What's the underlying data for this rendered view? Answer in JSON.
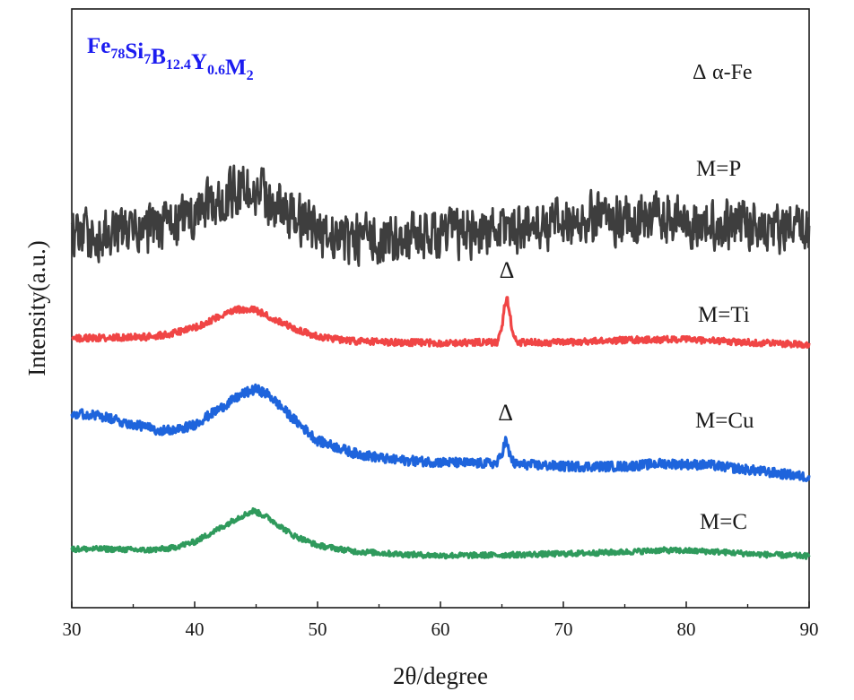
{
  "chart_data": {
    "type": "line",
    "title": {
      "base": [
        {
          "t": "Fe",
          "sub": "78"
        },
        {
          "t": "Si",
          "sub": "7"
        },
        {
          "t": "B",
          "sub": "12.4"
        },
        {
          "t": "Y",
          "sub": "0.6"
        },
        {
          "t": "M",
          "sub": "2"
        }
      ],
      "color": "#1c1cf0"
    },
    "xlabel": "2θ/degree",
    "ylabel": "Intensity(a.u.)",
    "xlim": [
      30,
      90
    ],
    "ylim": [
      0,
      100
    ],
    "xticks": [
      30,
      40,
      50,
      60,
      70,
      80,
      90
    ],
    "xtick_labels": [
      "30",
      "40",
      "50",
      "60",
      "70",
      "80",
      "90"
    ],
    "yticks_shown": false,
    "grid": false,
    "legend": {
      "marker": "Δ",
      "text": "α-Fe",
      "position": "top-right"
    },
    "peak_marker": "Δ",
    "series": [
      {
        "name": "M=P",
        "color": "#3e3e3e",
        "noise": 5.5,
        "peak_marked": false,
        "profile": [
          [
            30,
            62.0
          ],
          [
            33,
            62.3
          ],
          [
            37,
            63.2
          ],
          [
            40,
            65.5
          ],
          [
            42.5,
            68.5
          ],
          [
            44,
            70.0
          ],
          [
            46,
            68.2
          ],
          [
            48,
            65.2
          ],
          [
            50,
            62.7
          ],
          [
            53,
            61.5
          ],
          [
            56,
            61.6
          ],
          [
            60,
            62.2
          ],
          [
            63,
            62.9
          ],
          [
            66,
            63.6
          ],
          [
            70,
            64.2
          ],
          [
            74,
            65.2
          ],
          [
            78,
            65.0
          ],
          [
            82,
            64.1
          ],
          [
            86,
            63.8
          ],
          [
            90,
            62.5
          ]
        ]
      },
      {
        "name": "M=Ti",
        "color": "#f04545",
        "noise": 0.55,
        "peak_marked": true,
        "peak_x": 65.4,
        "profile": [
          [
            30,
            45.0
          ],
          [
            33,
            45.1
          ],
          [
            36,
            45.2
          ],
          [
            38,
            45.7
          ],
          [
            40,
            46.7
          ],
          [
            42,
            48.7
          ],
          [
            43.5,
            49.8
          ],
          [
            45,
            49.7
          ],
          [
            46.5,
            48.2
          ],
          [
            48,
            46.7
          ],
          [
            50,
            45.3
          ],
          [
            53,
            44.5
          ],
          [
            57,
            44.3
          ],
          [
            60,
            44.2
          ],
          [
            63,
            44.3
          ],
          [
            64.6,
            44.3
          ],
          [
            65.0,
            46.5
          ],
          [
            65.2,
            50.0
          ],
          [
            65.4,
            51.8
          ],
          [
            65.6,
            50.0
          ],
          [
            65.8,
            46.5
          ],
          [
            66.2,
            44.3
          ],
          [
            70,
            44.3
          ],
          [
            75,
            44.7
          ],
          [
            80,
            44.8
          ],
          [
            85,
            44.3
          ],
          [
            90,
            44.0
          ]
        ]
      },
      {
        "name": "M=Cu",
        "color": "#1e64dc",
        "noise": 0.8,
        "peak_marked": true,
        "peak_x": 65.3,
        "profile": [
          [
            30,
            32.5
          ],
          [
            32,
            32.1
          ],
          [
            35,
            30.6
          ],
          [
            37,
            29.7
          ],
          [
            38.5,
            29.6
          ],
          [
            40,
            30.6
          ],
          [
            42,
            33.2
          ],
          [
            44,
            35.8
          ],
          [
            45,
            36.5
          ],
          [
            46,
            35.6
          ],
          [
            48,
            31.6
          ],
          [
            50,
            27.9
          ],
          [
            53,
            25.8
          ],
          [
            56,
            24.7
          ],
          [
            60,
            24.3
          ],
          [
            63,
            24.1
          ],
          [
            64.6,
            24.1
          ],
          [
            65.0,
            25.8
          ],
          [
            65.3,
            28.0
          ],
          [
            65.6,
            25.8
          ],
          [
            66.0,
            24.0
          ],
          [
            70,
            23.6
          ],
          [
            75,
            23.6
          ],
          [
            78,
            24.1
          ],
          [
            82,
            23.8
          ],
          [
            86,
            22.8
          ],
          [
            90,
            21.8
          ]
        ]
      },
      {
        "name": "M=C",
        "color": "#2f9a5c",
        "noise": 0.45,
        "peak_marked": false,
        "profile": [
          [
            30,
            9.8
          ],
          [
            33,
            9.8
          ],
          [
            36,
            9.6
          ],
          [
            38,
            9.9
          ],
          [
            40,
            11.0
          ],
          [
            42,
            13.2
          ],
          [
            43.5,
            15.0
          ],
          [
            44.8,
            16.2
          ],
          [
            46,
            15.0
          ],
          [
            48,
            12.1
          ],
          [
            50,
            10.4
          ],
          [
            53,
            9.4
          ],
          [
            57,
            8.9
          ],
          [
            60,
            8.7
          ],
          [
            65,
            8.8
          ],
          [
            70,
            9.0
          ],
          [
            75,
            9.3
          ],
          [
            78,
            9.6
          ],
          [
            82,
            9.4
          ],
          [
            86,
            8.9
          ],
          [
            90,
            8.6
          ]
        ]
      }
    ]
  }
}
